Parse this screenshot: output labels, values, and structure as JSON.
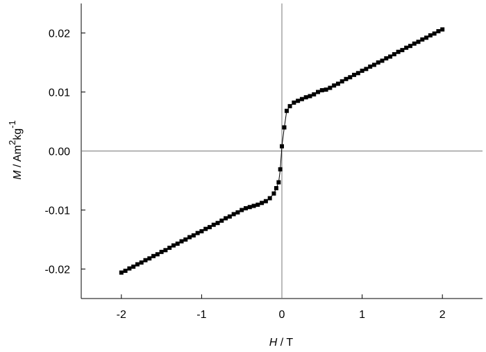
{
  "chart_data": {
    "type": "line",
    "marker": "square",
    "color": "#000000",
    "xlabel": [
      "H",
      " / T"
    ],
    "ylabel": [
      "M",
      " / Am",
      "2",
      "kg",
      "-1"
    ],
    "xlim": [
      -2.5,
      2.5
    ],
    "xticks": [
      -2,
      -1,
      0,
      1,
      2
    ],
    "ylim": [
      -0.025,
      0.025
    ],
    "yticks": [
      -0.02,
      -0.01,
      {
        "value": 0,
        "label": "0.00"
      },
      0.01,
      0.02
    ],
    "zero_lines": true,
    "x": [
      -2.0,
      -1.95,
      -1.9,
      -1.85,
      -1.8,
      -1.75,
      -1.7,
      -1.65,
      -1.6,
      -1.55,
      -1.5,
      -1.45,
      -1.4,
      -1.35,
      -1.3,
      -1.25,
      -1.2,
      -1.15,
      -1.1,
      -1.05,
      -1.0,
      -0.95,
      -0.9,
      -0.85,
      -0.8,
      -0.75,
      -0.7,
      -0.65,
      -0.6,
      -0.55,
      -0.5,
      -0.45,
      -0.4,
      -0.35,
      -0.3,
      -0.25,
      -0.2,
      -0.15,
      -0.1,
      -0.07,
      -0.04,
      -0.02,
      0.0,
      0.03,
      0.06,
      0.1,
      0.15,
      0.2,
      0.25,
      0.3,
      0.35,
      0.4,
      0.45,
      0.5,
      0.55,
      0.6,
      0.65,
      0.7,
      0.75,
      0.8,
      0.85,
      0.9,
      0.95,
      1.0,
      1.05,
      1.1,
      1.15,
      1.2,
      1.25,
      1.3,
      1.35,
      1.4,
      1.45,
      1.5,
      1.55,
      1.6,
      1.65,
      1.7,
      1.75,
      1.8,
      1.85,
      1.9,
      1.95,
      2.0
    ],
    "values": [
      -0.0206,
      -0.0203,
      -0.0199,
      -0.0196,
      -0.0192,
      -0.0189,
      -0.0185,
      -0.0182,
      -0.0178,
      -0.0175,
      -0.0171,
      -0.0168,
      -0.0164,
      -0.016,
      -0.0157,
      -0.0153,
      -0.015,
      -0.0146,
      -0.0143,
      -0.0139,
      -0.0136,
      -0.0132,
      -0.0129,
      -0.0125,
      -0.0122,
      -0.0118,
      -0.0114,
      -0.0111,
      -0.0107,
      -0.0104,
      -0.01,
      -0.0097,
      -0.0095,
      -0.0093,
      -0.0091,
      -0.0088,
      -0.0085,
      -0.008,
      -0.0072,
      -0.0063,
      -0.0053,
      -0.0031,
      0.0008,
      0.004,
      0.0068,
      0.0076,
      0.0082,
      0.0085,
      0.0088,
      0.0091,
      0.0093,
      0.0096,
      0.01,
      0.0103,
      0.0104,
      0.0107,
      0.0111,
      0.0114,
      0.0118,
      0.0122,
      0.0125,
      0.0129,
      0.0132,
      0.0136,
      0.0139,
      0.0143,
      0.0146,
      0.015,
      0.0153,
      0.0157,
      0.016,
      0.0164,
      0.0168,
      0.0171,
      0.0175,
      0.0178,
      0.0182,
      0.0185,
      0.0189,
      0.0192,
      0.0196,
      0.0199,
      0.0203,
      0.0206
    ]
  }
}
